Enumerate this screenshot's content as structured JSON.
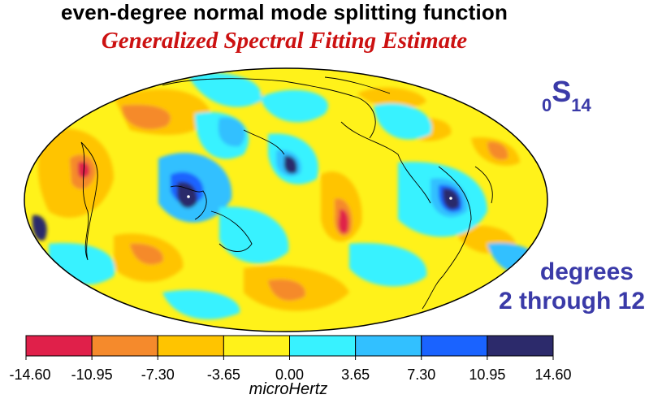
{
  "title": "even-degree normal mode splitting function",
  "subtitle": "Generalized Spectral Fitting Estimate",
  "mode": {
    "n": "0",
    "letter": "S",
    "l": "14"
  },
  "degrees": {
    "line1": "degrees",
    "line2": "2 through 12"
  },
  "colorbar": {
    "ticks": [
      "-14.60",
      "-10.95",
      "-7.30",
      "-3.65",
      "0.00",
      "3.65",
      "7.30",
      "10.95",
      "14.60"
    ],
    "colors": [
      "#e0204a",
      "#f58a2c",
      "#ffc400",
      "#fff21a",
      "#38f2ff",
      "#32c0ff",
      "#1a63ff",
      "#2c2a6b"
    ],
    "unit": "microHertz"
  },
  "map": {
    "projection": "Mollweide",
    "background_color": "#fff21a"
  }
}
